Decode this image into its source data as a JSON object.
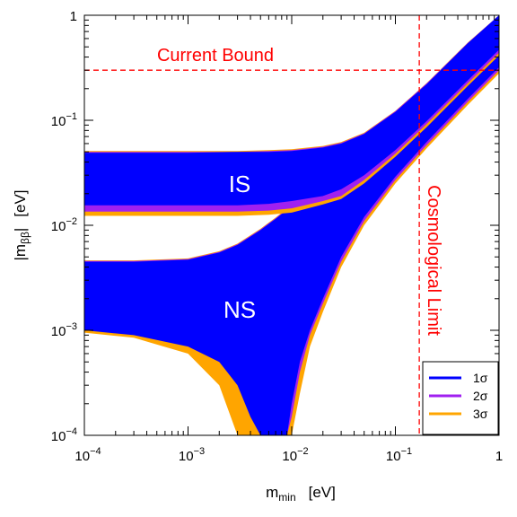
{
  "chart_data": {
    "type": "area",
    "xlabel": "m_min [eV]",
    "ylabel": "|m_ββ| [eV]",
    "xscale": "log",
    "yscale": "log",
    "xlim": [
      0.0001,
      1
    ],
    "ylim": [
      0.0001,
      1
    ],
    "xticks": [
      {
        "value": 0.0001,
        "base": "10",
        "exp": "−4"
      },
      {
        "value": 0.001,
        "base": "10",
        "exp": "−3"
      },
      {
        "value": 0.01,
        "base": "10",
        "exp": "−2"
      },
      {
        "value": 0.1,
        "base": "10",
        "exp": "−1"
      },
      {
        "value": 1,
        "base": "1",
        "exp": ""
      }
    ],
    "yticks": [
      {
        "value": 0.0001,
        "base": "10",
        "exp": "−4"
      },
      {
        "value": 0.001,
        "base": "10",
        "exp": "−3"
      },
      {
        "value": 0.01,
        "base": "10",
        "exp": "−2"
      },
      {
        "value": 0.1,
        "base": "10",
        "exp": "−1"
      },
      {
        "value": 1,
        "base": "1",
        "exp": ""
      }
    ],
    "legend": {
      "placement": "bottom-right",
      "entries": [
        {
          "label": "1σ",
          "color": "#0000ff"
        },
        {
          "label": "2σ",
          "color": "#a020f0"
        },
        {
          "label": "3σ",
          "color": "#ffa500"
        }
      ]
    },
    "regions": [
      {
        "label": "IS",
        "label_at": {
          "x": 0.0045,
          "y": 0.02
        }
      },
      {
        "label": "NS",
        "label_at": {
          "x": 0.0045,
          "y": 0.0014
        }
      }
    ],
    "bands": {
      "IS": {
        "x": [
          0.0001,
          0.001,
          0.003,
          0.006,
          0.01,
          0.02,
          0.03,
          0.05,
          0.1,
          0.2,
          0.5,
          1
        ],
        "sigma1": {
          "upper": [
            0.049,
            0.049,
            0.05,
            0.05,
            0.051,
            0.055,
            0.06,
            0.074,
            0.12,
            0.22,
            0.54,
            1.0
          ],
          "lower": [
            0.0155,
            0.0155,
            0.0155,
            0.016,
            0.017,
            0.019,
            0.022,
            0.03,
            0.052,
            0.098,
            0.24,
            0.47
          ]
        },
        "sigma2": {
          "upper": [
            0.05,
            0.05,
            0.05,
            0.051,
            0.052,
            0.056,
            0.061,
            0.075,
            0.122,
            0.224,
            0.545,
            1.0
          ],
          "lower": [
            0.0135,
            0.0135,
            0.0135,
            0.0138,
            0.0145,
            0.017,
            0.019,
            0.027,
            0.048,
            0.092,
            0.225,
            0.44
          ]
        },
        "sigma3": {
          "upper": [
            0.051,
            0.051,
            0.051,
            0.052,
            0.053,
            0.057,
            0.062,
            0.076,
            0.123,
            0.226,
            0.55,
            1.0
          ],
          "lower": [
            0.0123,
            0.0123,
            0.0123,
            0.0126,
            0.0132,
            0.0158,
            0.0178,
            0.025,
            0.045,
            0.086,
            0.212,
            0.415
          ]
        }
      },
      "NS": {
        "x": [
          0.0001,
          0.0003,
          0.001,
          0.002,
          0.003,
          0.004,
          0.005,
          0.006,
          0.007,
          0.008,
          0.009,
          0.01,
          0.012,
          0.015,
          0.02,
          0.03,
          0.05,
          0.1,
          0.2,
          0.5,
          1
        ],
        "sigma1": {
          "upper": [
            0.0045,
            0.0045,
            0.0047,
            0.0055,
            0.0065,
            0.0078,
            0.009,
            0.0103,
            0.0115,
            0.0128,
            0.014,
            0.0148,
            0.017,
            0.019,
            0.023,
            0.031,
            0.05,
            0.097,
            0.195,
            0.48,
            0.96
          ],
          "lower": [
            0.001,
            0.0009,
            0.0007,
            0.0005,
            0.0003,
            0.00015,
            0.0001,
            0.0001,
            0.0001,
            0.0001,
            0.0001,
            0.0002,
            0.0005,
            0.001,
            0.002,
            0.005,
            0.012,
            0.029,
            0.062,
            0.16,
            0.32
          ]
        },
        "sigma2_lower": [
          0.0011,
          0.001,
          0.0008,
          0.0006,
          0.0004,
          0.0002,
          0.0001,
          0.0001,
          0.0001,
          0.0001,
          0.0001,
          0.00015,
          0.0004,
          0.0009,
          0.0018,
          0.0045,
          0.011,
          0.027,
          0.058,
          0.15,
          0.3
        ],
        "sigma3_lower": [
          0.00095,
          0.00085,
          0.0006,
          0.0003,
          0.0001,
          0.0001,
          0.0001,
          0.0001,
          0.0001,
          0.0001,
          0.0001,
          0.0001,
          0.00025,
          0.0007,
          0.0015,
          0.004,
          0.01,
          0.025,
          0.054,
          0.14,
          0.28
        ]
      }
    },
    "reference_lines": [
      {
        "label": "Current Bound",
        "orientation": "horizontal",
        "value": 0.3,
        "color": "#ff0000",
        "style": "dashed"
      },
      {
        "label": "Cosmological Limit",
        "orientation": "vertical",
        "value": 0.17,
        "color": "#ff0000",
        "style": "dashed"
      }
    ],
    "colors": {
      "sigma1": "#0000ff",
      "sigma2": "#a020f0",
      "sigma3": "#ffa500",
      "reference": "#ff0000"
    }
  },
  "labels": {
    "xlabel_main": "m",
    "xlabel_sub": "min",
    "xlabel_unit": "[eV]",
    "ylabel_main": "|m",
    "ylabel_sub": "ββ",
    "ylabel_close": "|",
    "ylabel_unit": "[eV]",
    "current_bound": "Current Bound",
    "cosmological_limit": "Cosmological Limit",
    "is_region": "IS",
    "ns_region": "NS"
  }
}
